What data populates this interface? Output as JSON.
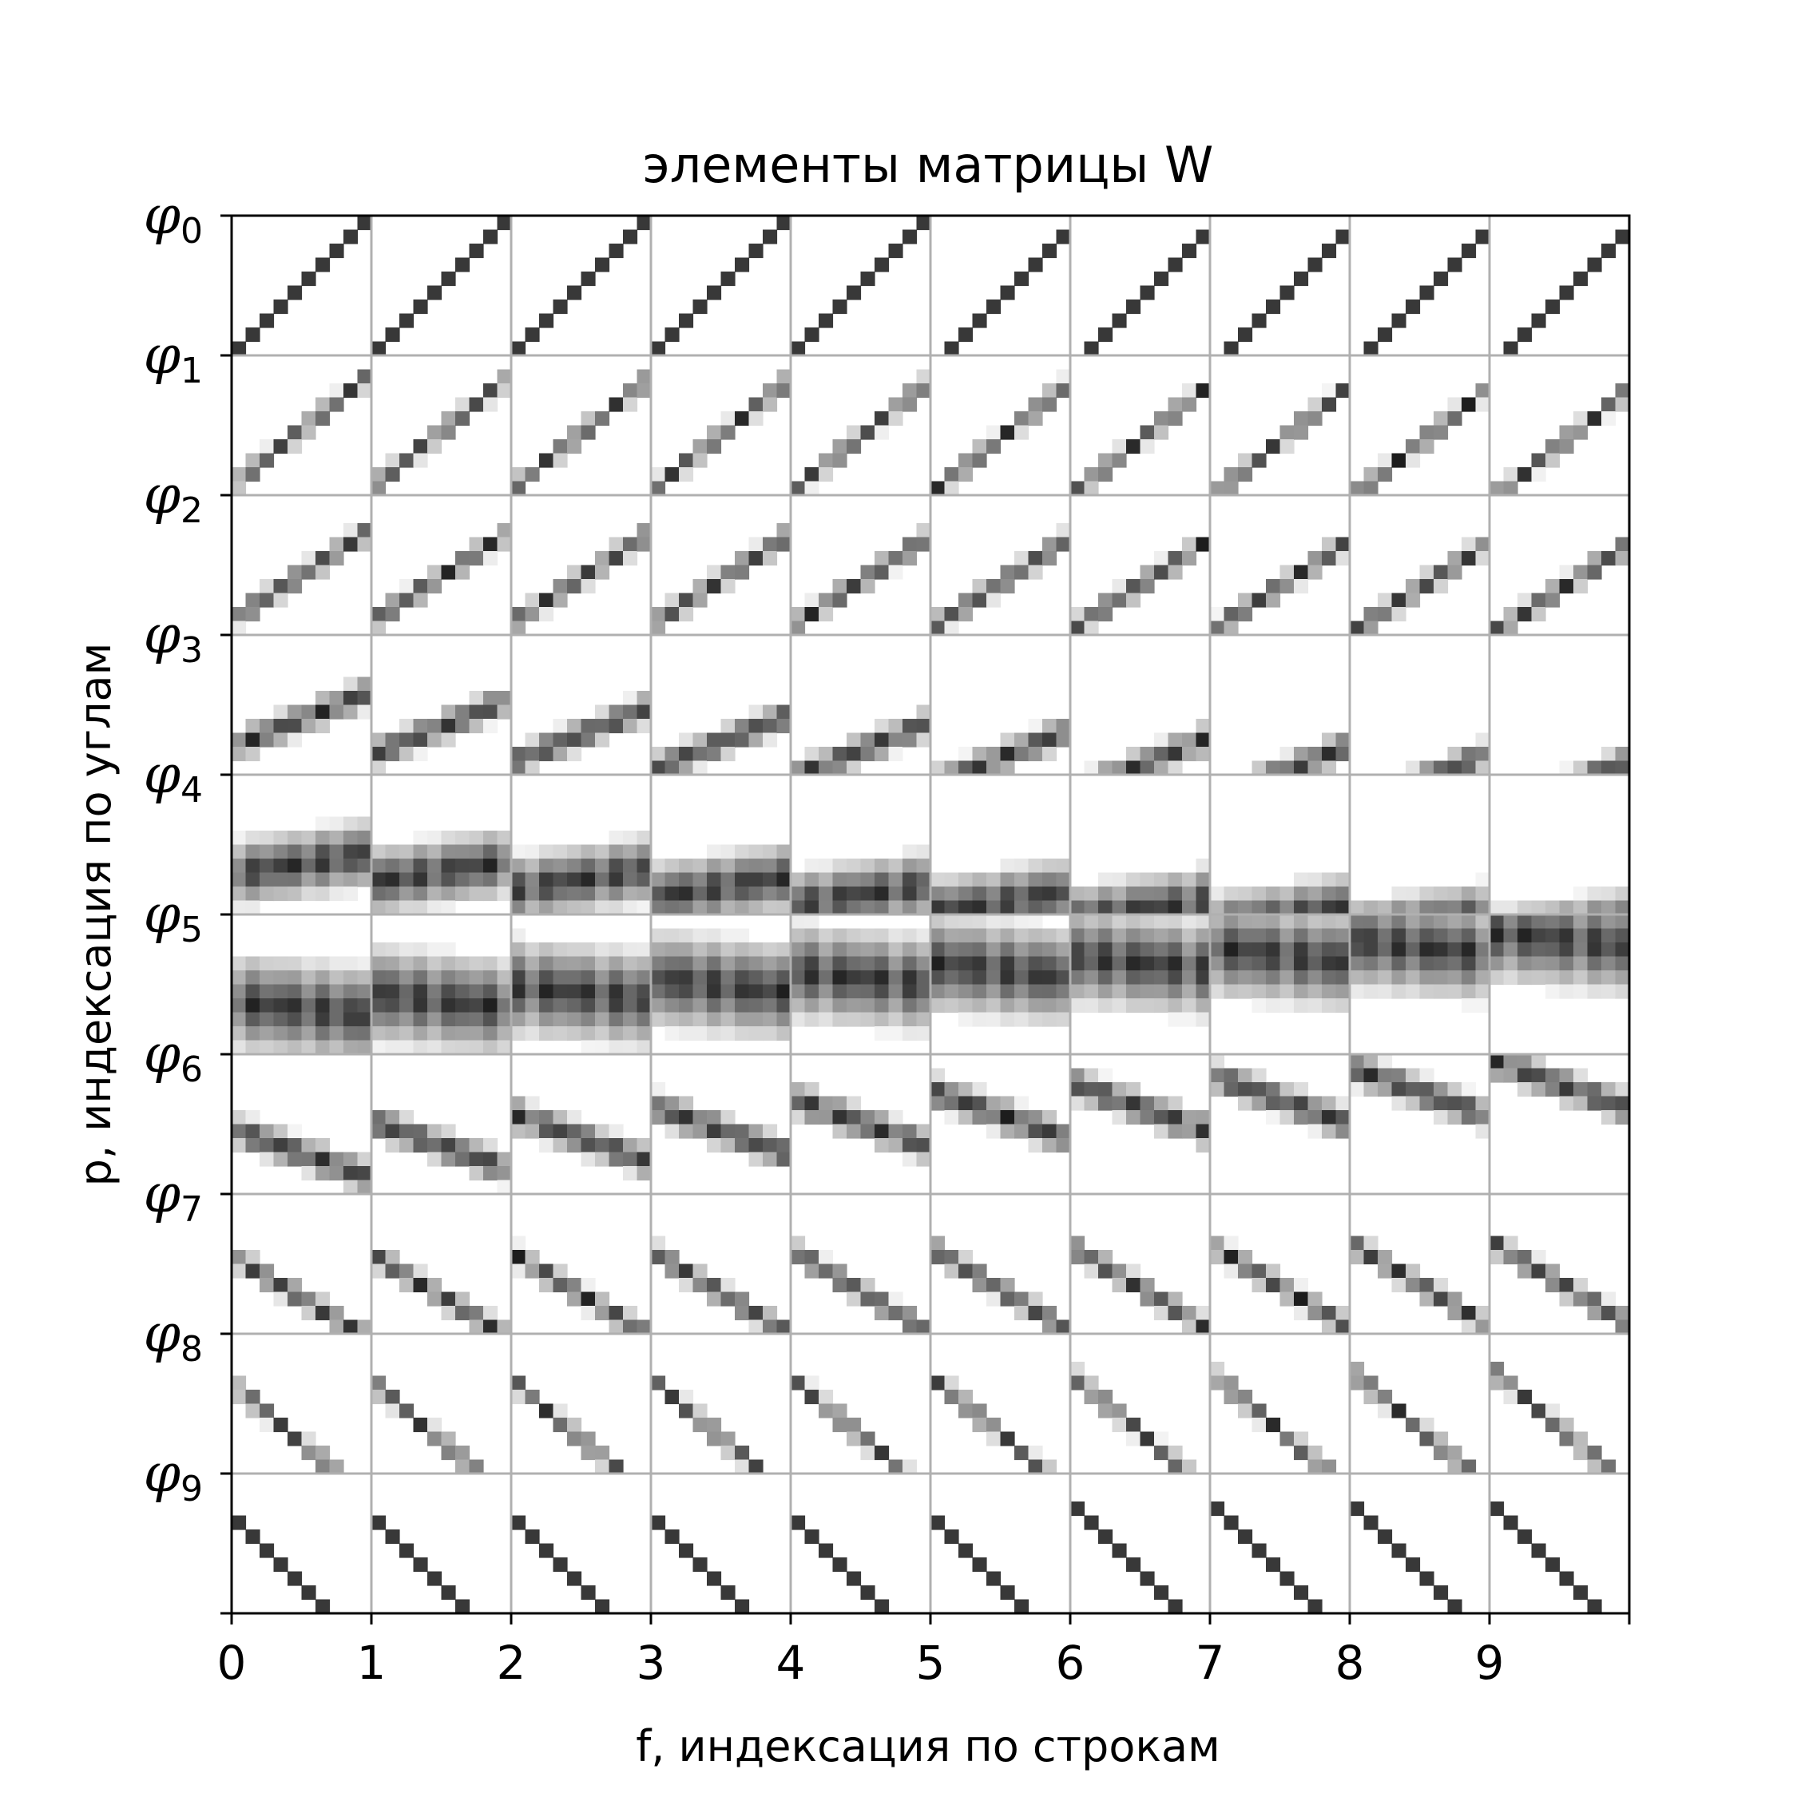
{
  "chart_data": {
    "type": "heatmap",
    "title": "элементы матрицы W",
    "xlabel": "f, индексация по строкам",
    "ylabel": "p, индексация по углам",
    "x_ticks": [
      "0",
      "1",
      "2",
      "3",
      "4",
      "5",
      "6",
      "7",
      "8",
      "9"
    ],
    "y_ticks": [
      {
        "symbol": "φ",
        "sub": "0"
      },
      {
        "symbol": "φ",
        "sub": "1"
      },
      {
        "symbol": "φ",
        "sub": "2"
      },
      {
        "symbol": "φ",
        "sub": "3"
      },
      {
        "symbol": "φ",
        "sub": "4"
      },
      {
        "symbol": "φ",
        "sub": "5"
      },
      {
        "symbol": "φ",
        "sub": "6"
      },
      {
        "symbol": "φ",
        "sub": "7"
      },
      {
        "symbol": "φ",
        "sub": "8"
      },
      {
        "symbol": "φ",
        "sub": "9"
      }
    ],
    "x_range": [
      0,
      10
    ],
    "y_range": [
      0,
      10
    ],
    "grid": true,
    "colormap": "gray_r",
    "cells_per_block": 10,
    "blocks": 10,
    "block_slopes": [
      -1.0,
      -0.8,
      -0.65,
      -0.4,
      -0.15,
      0.1,
      0.35,
      0.6,
      0.85,
      1.0
    ]
  }
}
